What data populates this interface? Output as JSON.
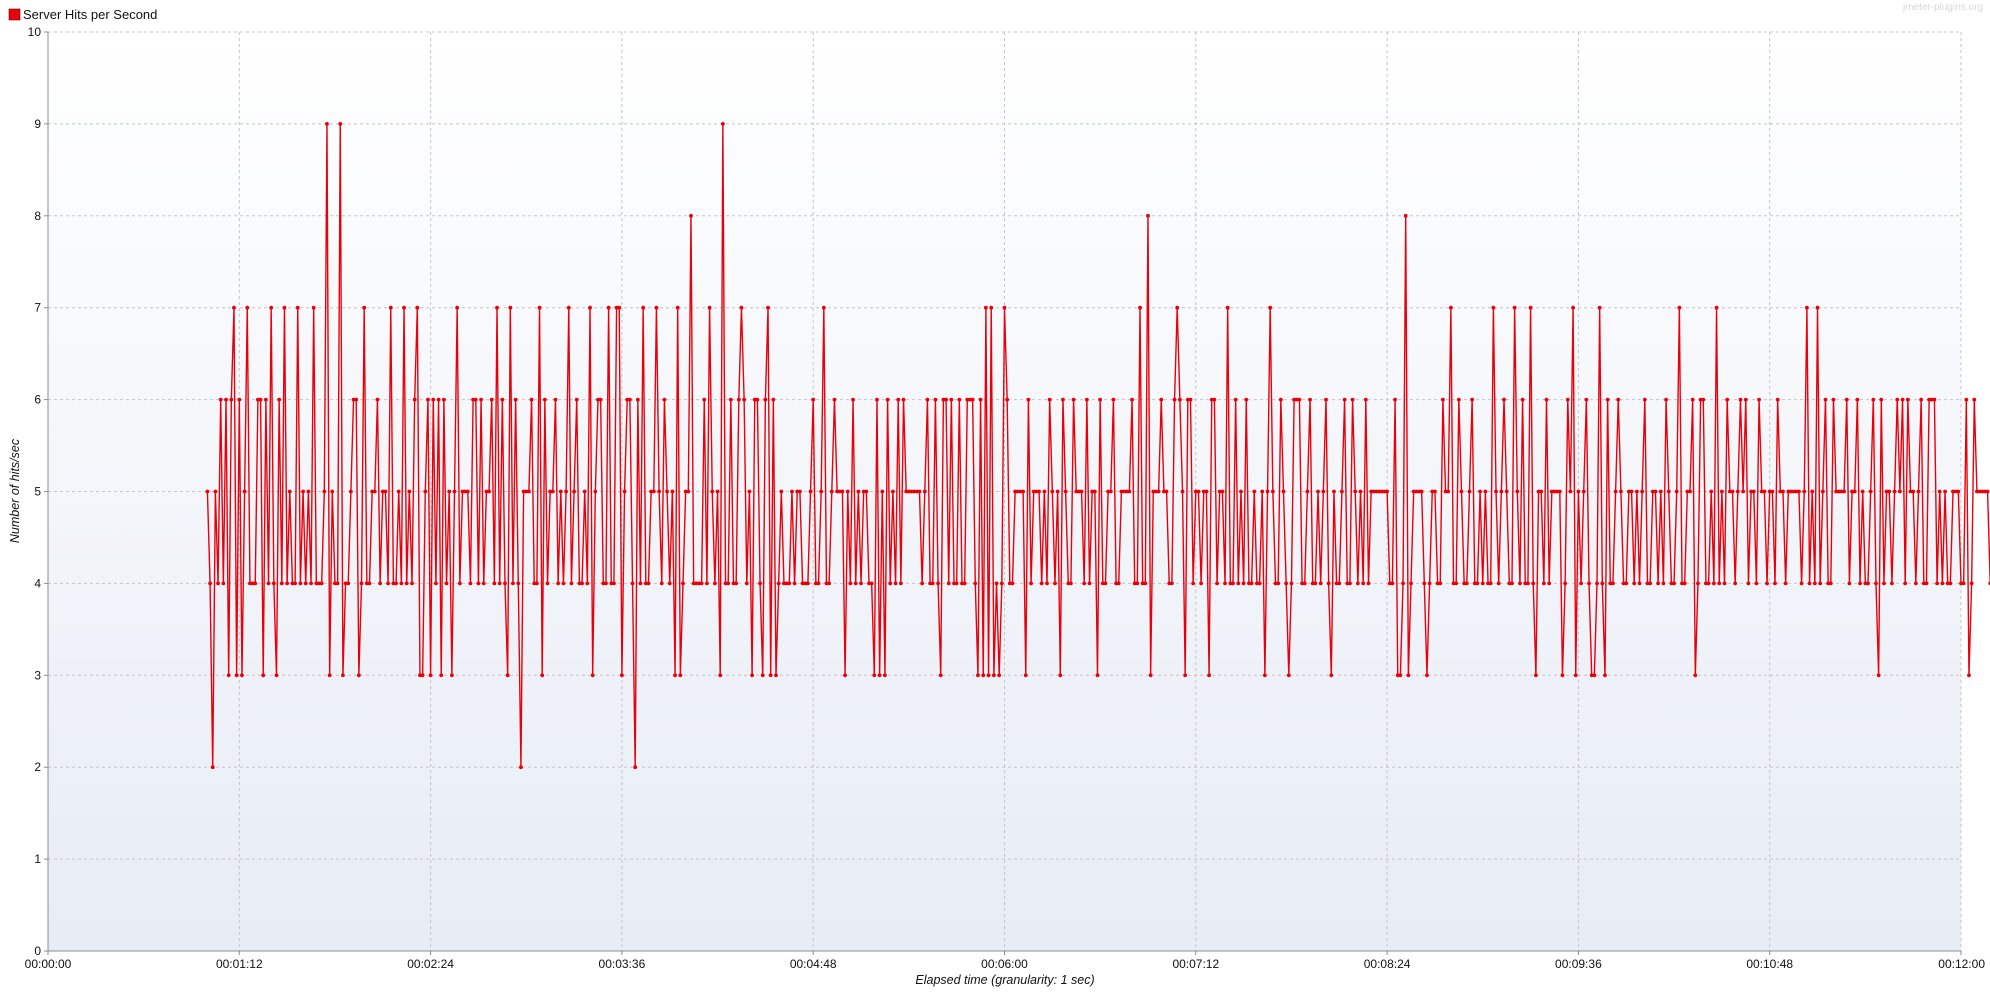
{
  "legend": {
    "label": "Server Hits per Second",
    "color": "#e8000b"
  },
  "watermark": "jmeter-plugins.org",
  "chart_data": {
    "type": "line",
    "title": "",
    "xlabel": "Elapsed time (granularity: 1 sec)",
    "ylabel": "Number of hits/sec",
    "xlim": [
      0,
      720
    ],
    "ylim": [
      0,
      10
    ],
    "x_ticks": [
      "00:00:00",
      "00:01:12",
      "00:02:24",
      "00:03:36",
      "00:04:48",
      "00:06:00",
      "00:07:12",
      "00:08:24",
      "00:09:36",
      "00:10:48",
      "00:12:00"
    ],
    "y_ticks": [
      "0",
      "1",
      "2",
      "3",
      "4",
      "5",
      "6",
      "7",
      "8",
      "9",
      "10"
    ],
    "grid": true,
    "legend_position": "top-left",
    "series": [
      {
        "name": "Server Hits per Second",
        "color": "#e8000b",
        "x_start": 60,
        "x_step": 1,
        "values": [
          5,
          4,
          2,
          5,
          4,
          6,
          4,
          6,
          3,
          6,
          7,
          3,
          6,
          3,
          5,
          7,
          4,
          4,
          4,
          6,
          6,
          3,
          6,
          4,
          7,
          4,
          3,
          6,
          4,
          7,
          4,
          5,
          4,
          4,
          7,
          4,
          5,
          4,
          5,
          4,
          7,
          4,
          4,
          4,
          5,
          9,
          3,
          5,
          4,
          4,
          9,
          3,
          4,
          4,
          5,
          6,
          6,
          3,
          4,
          7,
          4,
          4,
          5,
          5,
          6,
          4,
          5,
          5,
          4,
          7,
          4,
          4,
          5,
          4,
          7,
          4,
          5,
          4,
          6,
          7,
          3,
          3,
          5,
          6,
          3,
          6,
          4,
          6,
          3,
          6,
          4,
          5,
          3,
          5,
          7,
          4,
          5,
          5,
          5,
          4,
          6,
          6,
          4,
          6,
          4,
          5,
          5,
          6,
          4,
          7,
          4,
          6,
          4,
          3,
          7,
          4,
          6,
          4,
          2,
          5,
          5,
          5,
          6,
          4,
          4,
          7,
          3,
          6,
          4,
          5,
          5,
          6,
          4,
          5,
          4,
          5,
          7,
          4,
          5,
          6,
          4,
          4,
          5,
          4,
          7,
          3,
          5,
          6,
          6,
          4,
          4,
          7,
          4,
          4,
          7,
          7,
          3,
          5,
          6,
          6,
          4,
          2,
          6,
          4,
          7,
          4,
          4,
          5,
          5,
          7,
          5,
          4,
          6,
          5,
          4,
          5,
          3,
          7,
          3,
          4,
          5,
          5,
          8,
          4,
          4,
          4,
          4,
          6,
          4,
          7,
          5,
          4,
          5,
          3,
          9,
          4,
          4,
          6,
          4,
          4,
          6,
          7,
          6,
          4,
          5,
          3,
          6,
          6,
          4,
          3,
          6,
          7,
          3,
          6,
          3,
          4,
          5,
          4,
          4,
          4,
          5,
          4,
          5,
          5,
          4,
          4,
          4,
          5,
          6,
          4,
          4,
          5,
          7,
          4,
          4,
          5,
          6,
          5,
          5,
          5,
          3,
          5,
          4,
          6,
          4,
          5,
          4,
          5,
          5,
          4,
          4,
          3,
          6,
          3,
          5,
          3,
          6,
          4,
          5,
          4,
          6,
          4,
          6,
          5,
          5,
          5,
          5,
          5,
          5,
          4,
          5,
          6,
          4,
          4,
          6,
          4,
          3,
          6,
          6,
          4,
          6,
          4,
          4,
          6,
          4,
          4,
          6,
          6,
          6,
          4,
          3,
          6,
          3,
          7,
          3,
          7,
          3,
          4,
          3,
          4,
          7,
          6,
          4,
          4,
          5,
          5,
          5,
          5,
          3,
          6,
          4,
          5,
          5,
          5,
          4,
          5,
          4,
          6,
          5,
          4,
          5,
          3,
          6,
          5,
          4,
          4,
          6,
          5,
          5,
          5,
          4,
          6,
          4,
          5,
          5,
          3,
          6,
          4,
          4,
          5,
          5,
          6,
          4,
          4,
          5,
          5,
          5,
          5,
          6,
          4,
          4,
          7,
          4,
          4,
          8,
          3,
          5,
          5,
          5,
          6,
          5,
          5,
          4,
          4,
          6,
          7,
          6,
          5,
          3,
          6,
          6,
          4,
          5,
          5,
          4,
          5,
          5,
          3,
          6,
          6,
          4,
          5,
          5,
          4,
          7,
          4,
          4,
          6,
          4,
          5,
          4,
          6,
          4,
          4,
          5,
          4,
          4,
          5,
          3,
          5,
          7,
          5,
          4,
          4,
          6,
          5,
          4,
          3,
          4,
          6,
          6,
          6,
          4,
          4,
          5,
          6,
          4,
          4,
          5,
          4,
          5,
          6,
          4,
          3,
          5,
          4,
          4,
          5,
          6,
          4,
          4,
          6,
          5,
          4,
          5,
          4,
          6,
          4,
          5,
          5,
          5,
          5,
          5,
          5,
          5,
          4,
          4,
          6,
          3,
          3,
          4,
          8,
          3,
          4,
          5,
          5,
          5,
          5,
          4,
          3,
          4,
          5,
          5,
          4,
          4,
          6,
          5,
          5,
          7,
          4,
          4,
          6,
          5,
          4,
          4,
          5,
          6,
          4,
          4,
          5,
          4,
          5,
          4,
          4,
          7,
          5,
          4,
          5,
          6,
          5,
          4,
          4,
          7,
          5,
          4,
          6,
          4,
          4,
          7,
          4,
          3,
          5,
          5,
          4,
          6,
          4,
          5,
          5,
          5,
          5,
          3,
          4,
          6,
          5,
          7,
          3,
          5,
          4,
          5,
          6,
          4,
          3,
          3,
          4,
          7,
          4,
          3,
          6,
          4,
          4,
          5,
          6,
          5,
          4,
          4,
          5,
          5,
          4,
          5,
          4,
          5,
          6,
          4,
          4,
          5,
          5,
          4,
          5,
          4,
          6,
          5,
          4,
          4,
          5,
          7,
          4,
          4,
          5,
          5,
          6,
          3,
          4,
          6,
          6,
          4,
          4,
          5,
          4,
          7,
          4,
          5,
          4,
          6,
          5,
          5,
          4,
          5,
          6,
          5,
          6,
          4,
          5,
          5,
          4,
          6,
          5,
          5,
          4,
          5,
          5,
          4,
          6,
          5,
          5,
          4,
          5,
          5,
          5,
          5,
          5,
          4,
          5,
          7,
          4,
          5,
          4,
          7,
          4,
          5,
          6,
          4,
          4,
          6,
          5,
          5,
          5,
          5,
          6,
          4,
          5,
          5,
          6,
          4,
          5,
          4,
          4,
          5,
          6,
          4,
          3,
          6,
          4,
          5,
          5,
          4,
          5,
          6,
          5,
          6,
          4,
          6,
          5,
          5,
          4,
          5,
          6,
          4,
          4,
          6,
          6,
          6,
          4,
          5,
          4,
          5,
          4,
          4,
          5,
          5,
          5,
          4,
          4,
          6,
          3,
          4,
          6,
          5,
          5,
          5,
          5,
          5,
          4,
          6,
          6,
          4,
          6,
          5,
          4,
          6,
          4,
          4,
          5,
          5,
          4,
          6,
          4,
          6,
          6,
          4,
          5,
          4,
          5,
          5,
          5,
          5,
          5,
          5,
          4,
          6,
          4,
          6,
          4,
          5,
          6,
          3,
          6,
          6,
          4,
          6,
          5,
          4,
          5,
          2
        ]
      }
    ]
  }
}
